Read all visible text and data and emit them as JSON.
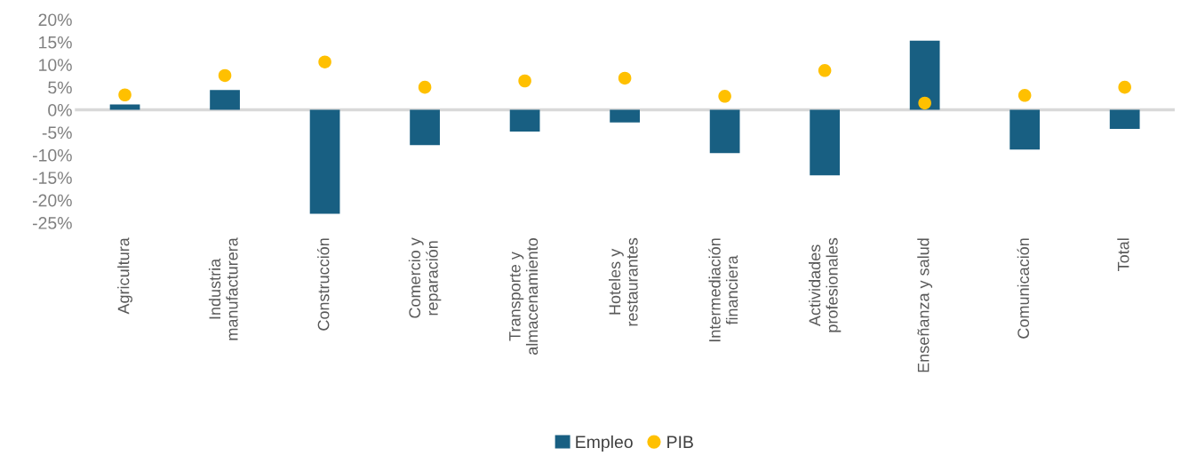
{
  "chart_data": {
    "type": "bar",
    "categories": [
      "Agricultura",
      "Industria\nmanufacturera",
      "Construcción",
      "Comercio y\nreparación",
      "Transporte y\nalmacenamiento",
      "Hoteles y\nrestaurantes",
      "Intermediación\nfinanciera",
      "Actividades\nprofesionales",
      "Enseñanza y salud",
      "Comunicación",
      "Total"
    ],
    "series": [
      {
        "name": "Empleo",
        "color": "#185f82",
        "values": [
          1.2,
          4.4,
          -23,
          -7.8,
          -4.8,
          -2.8,
          -9.6,
          -14.5,
          15.3,
          -8.8,
          -4.2
        ]
      },
      {
        "name": "PIB",
        "type": "scatter",
        "color": "#ffc000",
        "values": [
          3.3,
          7.6,
          10.6,
          5,
          6.4,
          7,
          3,
          8.7,
          1.5,
          3.2,
          5
        ]
      }
    ],
    "ylim": [
      -25,
      20
    ],
    "yticks": [
      {
        "value": 20,
        "label": "20%"
      },
      {
        "value": 15,
        "label": "15%"
      },
      {
        "value": 10,
        "label": "10%"
      },
      {
        "value": 5,
        "label": "5%"
      },
      {
        "value": 0,
        "label": "0%"
      },
      {
        "value": -5,
        "label": "-5%"
      },
      {
        "value": -10,
        "label": "-10%"
      },
      {
        "value": -15,
        "label": "-15%"
      },
      {
        "value": -20,
        "label": "-20%"
      },
      {
        "value": -25,
        "label": "-25%"
      }
    ],
    "ref_lines": [
      {
        "axis": "y",
        "value": 0,
        "color": "#d9d9d9"
      }
    ],
    "legend": "bottom",
    "marker": "circle"
  }
}
